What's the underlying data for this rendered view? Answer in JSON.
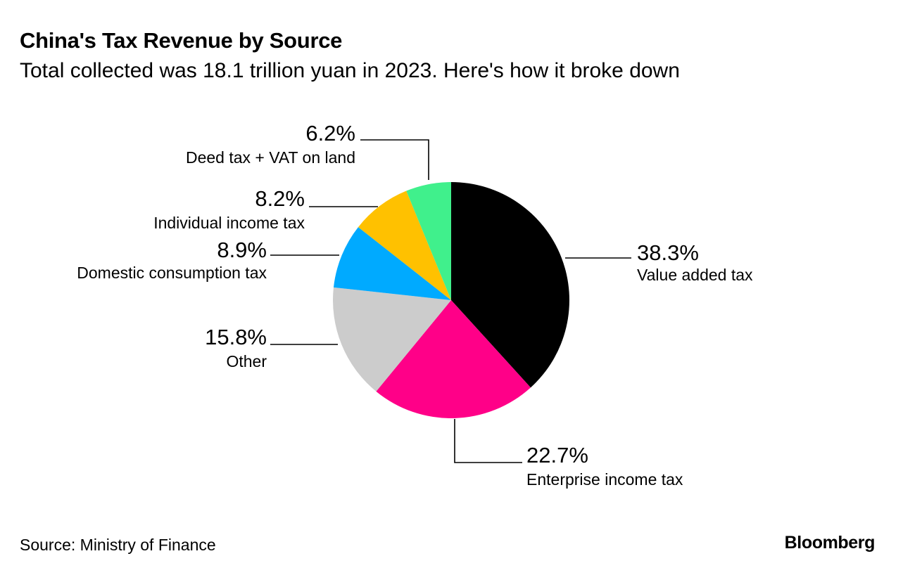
{
  "header": {
    "title": "China's Tax Revenue by Source",
    "subtitle": "Total collected was 18.1 trillion yuan in 2023. Here's how it broke down"
  },
  "footer": {
    "source": "Source: Ministry of Finance",
    "brand": "Bloomberg"
  },
  "chart_data": {
    "type": "pie",
    "unit": "%",
    "slices": [
      {
        "label": "Value added tax",
        "value": 38.3,
        "value_label": "38.3%",
        "color": "#000000"
      },
      {
        "label": "Enterprise income tax",
        "value": 22.7,
        "value_label": "22.7%",
        "color": "#ff0088"
      },
      {
        "label": "Other",
        "value": 15.8,
        "value_label": "15.8%",
        "color": "#cccccc"
      },
      {
        "label": "Domestic consumption tax",
        "value": 8.9,
        "value_label": "8.9%",
        "color": "#00aaff"
      },
      {
        "label": "Individual income tax",
        "value": 8.2,
        "value_label": "8.2%",
        "color": "#ffc100"
      },
      {
        "label": "Deed tax + VAT on land",
        "value": 6.2,
        "value_label": "6.2%",
        "color": "#40f08c"
      }
    ]
  }
}
